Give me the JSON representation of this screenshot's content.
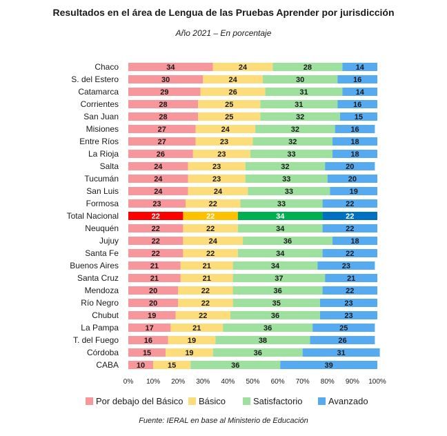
{
  "title": "Resultados en el área de Lengua de las Pruebas Aprender por jurisdicción",
  "subtitle": "Año 2021 – En porcentaje",
  "source": "Fuente: IERAL en base al Ministerio de Educación",
  "colors": {
    "normal": [
      "#f7979b",
      "#fddc7a",
      "#9ee09e",
      "#56aaf0"
    ],
    "highlight": [
      "#ff0000",
      "#ffc000",
      "#00b050",
      "#0070c0"
    ]
  },
  "chart_data": {
    "type": "bar",
    "orientation": "horizontal",
    "stacked": true,
    "categories": [
      "Chaco",
      "S. del Estero",
      "Catamarca",
      "Corrientes",
      "San Juan",
      "Misiones",
      "Entre Ríos",
      "La Rioja",
      "Salta",
      "Tucumán",
      "San Luis",
      "Formosa",
      "Total Nacional",
      "Neuquén",
      "Jujuy",
      "Santa Fe",
      "Buenos Aires",
      "Santa Cruz",
      "Mendoza",
      "Río Negro",
      "Chubut",
      "La Pampa",
      "T. del Fuego",
      "Córdoba",
      "CABA"
    ],
    "highlight_category": "Total Nacional",
    "series": [
      {
        "name": "Por debajo del Básico",
        "values": [
          34,
          30,
          29,
          28,
          28,
          27,
          27,
          26,
          24,
          24,
          24,
          23,
          22,
          22,
          22,
          22,
          21,
          21,
          20,
          20,
          19,
          17,
          16,
          15,
          10
        ]
      },
      {
        "name": "Básico",
        "values": [
          24,
          24,
          26,
          25,
          25,
          24,
          23,
          23,
          23,
          23,
          24,
          22,
          22,
          22,
          24,
          22,
          21,
          21,
          22,
          22,
          22,
          21,
          19,
          19,
          15
        ]
      },
      {
        "name": "Satisfactorio",
        "values": [
          28,
          30,
          31,
          31,
          32,
          32,
          32,
          33,
          32,
          33,
          33,
          33,
          34,
          34,
          36,
          34,
          34,
          37,
          36,
          35,
          36,
          36,
          38,
          36,
          36
        ]
      },
      {
        "name": "Avanzado",
        "values": [
          14,
          16,
          14,
          16,
          15,
          16,
          18,
          18,
          20,
          20,
          19,
          22,
          22,
          22,
          18,
          22,
          23,
          21,
          22,
          23,
          23,
          25,
          26,
          31,
          39
        ]
      }
    ],
    "xlim": [
      0,
      100
    ],
    "xticks": [
      "0%",
      "10%",
      "20%",
      "30%",
      "40%",
      "50%",
      "60%",
      "70%",
      "80%",
      "90%",
      "100%"
    ],
    "legend": "bottom",
    "grid": false
  }
}
